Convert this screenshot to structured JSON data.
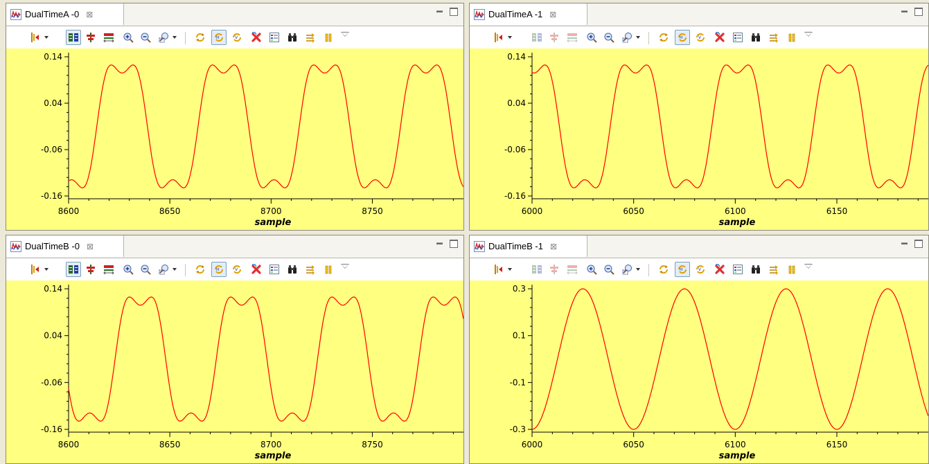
{
  "colors": {
    "plot_background": "#ffff80",
    "trace": "#ff0000",
    "axis": "#000000"
  },
  "toolbar_icons": [
    "insertion-marker-icon",
    "link-views-icon",
    "center-icon",
    "fit-range-icon",
    "zoom-in-icon",
    "zoom-out-icon",
    "zoom-region-icon",
    "sync-icon",
    "sync-horizontal-icon",
    "sync-vertical-icon",
    "delete-icon",
    "legend-icon",
    "find-icon",
    "scroll-lock-icon",
    "pause-icon",
    "view-menu-icon"
  ],
  "panels": [
    {
      "title": "DualTimeA -0",
      "close_icon": "⊠",
      "linked_controls_enabled": true,
      "xlabel": "sample",
      "y_ticks": [
        "0.14",
        "0.04",
        "-0.06",
        "-0.16"
      ],
      "x_ticks": [
        "8600",
        "8650",
        "8700",
        "8750"
      ],
      "chart_data": {
        "type": "line",
        "title": "",
        "xlabel": "sample",
        "ylabel": "",
        "xlim": [
          8600,
          8795
        ],
        "ylim": [
          -0.16,
          0.14
        ],
        "x_ticks": [
          8600,
          8650,
          8700,
          8750
        ],
        "y_ticks": [
          0.14,
          0.04,
          -0.06,
          -0.16
        ],
        "series": [
          {
            "period": 50,
            "phase": -1.75,
            "fundamental": 0.15,
            "third_harmonic": 0.035,
            "offset": -0.01
          }
        ]
      }
    },
    {
      "title": "DualTimeA -1",
      "close_icon": "⊠",
      "linked_controls_enabled": false,
      "xlabel": "sample",
      "y_ticks": [
        "0.14",
        "0.04",
        "-0.06",
        "-0.16"
      ],
      "x_ticks": [
        "6000",
        "6050",
        "6100",
        "6150"
      ],
      "chart_data": {
        "type": "line",
        "title": "",
        "xlabel": "sample",
        "ylabel": "",
        "xlim": [
          6000,
          6195
        ],
        "ylim": [
          -0.16,
          0.14
        ],
        "x_ticks": [
          6000,
          6050,
          6100,
          6150
        ],
        "y_ticks": [
          0.14,
          0.04,
          -0.06,
          -0.16
        ],
        "series": [
          {
            "period": 50,
            "phase": 1.45,
            "fundamental": 0.15,
            "third_harmonic": 0.035,
            "offset": -0.01
          }
        ]
      }
    },
    {
      "title": "DualTimeB -0",
      "close_icon": "⊠",
      "linked_controls_enabled": true,
      "xlabel": "sample",
      "y_ticks": [
        "0.14",
        "0.04",
        "-0.06",
        "-0.16"
      ],
      "x_ticks": [
        "8600",
        "8650",
        "8700",
        "8750"
      ],
      "chart_data": {
        "type": "line",
        "title": "",
        "xlabel": "sample",
        "ylabel": "",
        "xlim": [
          8600,
          8795
        ],
        "ylim": [
          -0.16,
          0.14
        ],
        "x_ticks": [
          8600,
          8650,
          8700,
          8750
        ],
        "y_ticks": [
          0.14,
          0.04,
          -0.06,
          -0.16
        ],
        "series": [
          {
            "period": 50,
            "phase": 3.4,
            "fundamental": 0.15,
            "third_harmonic": 0.035,
            "offset": -0.01
          }
        ]
      }
    },
    {
      "title": "DualTimeB -1",
      "close_icon": "⊠",
      "linked_controls_enabled": false,
      "xlabel": "sample",
      "y_ticks": [
        "0.3",
        "0.1",
        "-0.1",
        "-0.3"
      ],
      "x_ticks": [
        "6000",
        "6050",
        "6100",
        "6150"
      ],
      "chart_data": {
        "type": "line",
        "title": "",
        "xlabel": "sample",
        "ylabel": "",
        "xlim": [
          6000,
          6195
        ],
        "ylim": [
          -0.3,
          0.3
        ],
        "x_ticks": [
          6000,
          6050,
          6100,
          6150
        ],
        "y_ticks": [
          0.3,
          0.1,
          -0.1,
          -0.3
        ],
        "series": [
          {
            "period": 50,
            "phase": -1.5708,
            "fundamental": 0.3,
            "third_harmonic": 0,
            "offset": 0
          }
        ]
      }
    }
  ]
}
